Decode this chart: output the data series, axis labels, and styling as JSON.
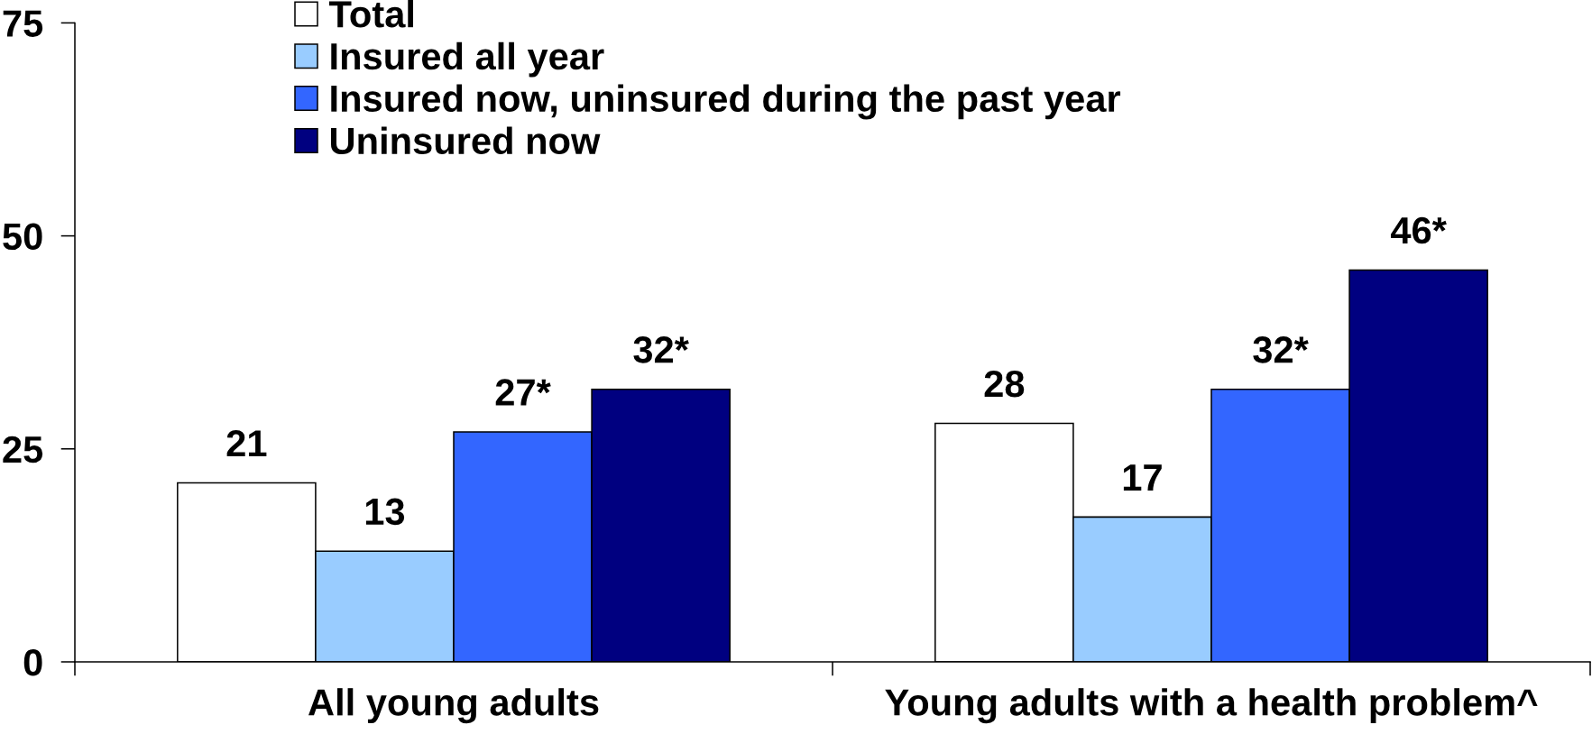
{
  "chart_data": {
    "type": "bar",
    "categories": [
      "All young adults",
      "Young adults with a health problem^"
    ],
    "series": [
      {
        "name": "Total",
        "color": "#ffffff",
        "values": [
          21,
          28
        ],
        "value_labels": [
          "21",
          "28"
        ]
      },
      {
        "name": "Insured all year",
        "color": "#99ccff",
        "values": [
          13,
          17
        ],
        "value_labels": [
          "13",
          "17"
        ]
      },
      {
        "name": "Insured now, uninsured during the past year",
        "color": "#3366ff",
        "values": [
          27,
          32
        ],
        "value_labels": [
          "27*",
          "32*"
        ]
      },
      {
        "name": "Uninsured now",
        "color": "#000080",
        "values": [
          32,
          46
        ],
        "value_labels": [
          "32*",
          "46*"
        ]
      }
    ],
    "ylim": [
      0,
      75
    ],
    "yticks": [
      0,
      25,
      50,
      75
    ],
    "grid": false,
    "legend": "top"
  }
}
